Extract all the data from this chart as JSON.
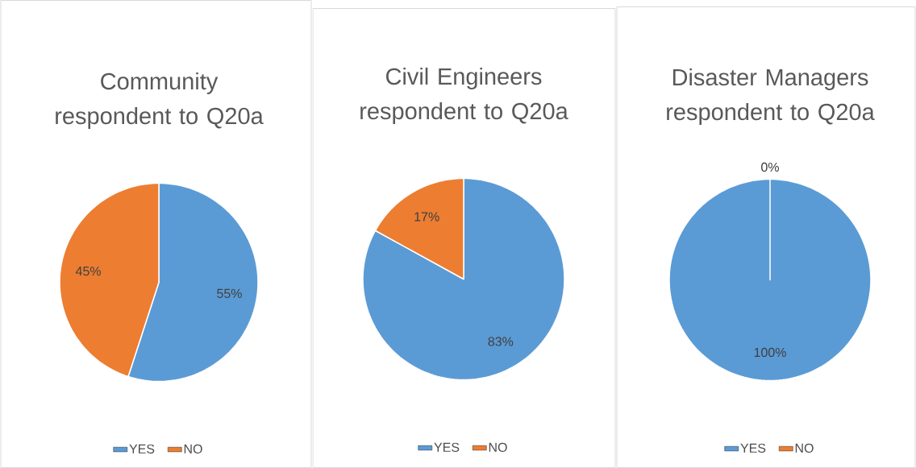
{
  "chart_data": [
    {
      "type": "pie",
      "title": "Community respondent to Q20a",
      "categories": [
        "YES",
        "NO"
      ],
      "values": [
        55,
        45
      ],
      "value_labels": [
        "55%",
        "45%"
      ],
      "colors": [
        "#5b9bd5",
        "#ed7d31"
      ],
      "legend": "bottom"
    },
    {
      "type": "pie",
      "title": "Civil Engineers respondent to Q20a",
      "categories": [
        "YES",
        "NO"
      ],
      "values": [
        83,
        17
      ],
      "value_labels": [
        "83%",
        "17%"
      ],
      "colors": [
        "#5b9bd5",
        "#ed7d31"
      ],
      "legend": "bottom"
    },
    {
      "type": "pie",
      "title": "Disaster Managers respondent to Q20a",
      "categories": [
        "YES",
        "NO"
      ],
      "values": [
        100,
        0
      ],
      "value_labels": [
        "100%",
        "0%"
      ],
      "colors": [
        "#5b9bd5",
        "#ed7d31"
      ],
      "legend": "bottom"
    }
  ]
}
